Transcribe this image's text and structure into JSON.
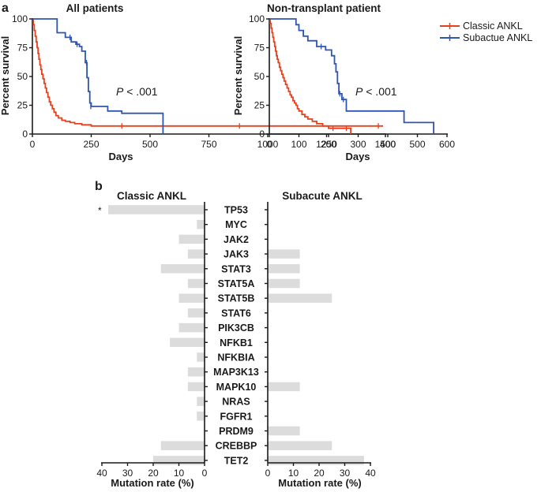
{
  "panel_labels": {
    "a": "a",
    "b": "b"
  },
  "colors": {
    "classic": "#e8401c",
    "subacute": "#2f55b0",
    "bar": "#dcdcdc",
    "axis": "#1a1a1a"
  },
  "legend": {
    "classic": "Classic ANKL",
    "subacute": "Subactue ANKL"
  },
  "chart_data": [
    {
      "id": "km-all",
      "type": "line",
      "title": "All patients",
      "xlabel": "Days",
      "ylabel": "Percent survival",
      "xlim": [
        0,
        1500
      ],
      "ylim": [
        0,
        100
      ],
      "xticks": [
        0,
        250,
        500,
        750,
        1000,
        1250,
        1500
      ],
      "yticks": [
        0,
        25,
        50,
        75,
        100
      ],
      "annotation": {
        "p_label": "P",
        "p_value": "< .001"
      },
      "series": [
        {
          "name": "Classic ANKL",
          "color_key": "classic",
          "steps": [
            [
              0,
              100
            ],
            [
              4,
              95
            ],
            [
              8,
              90
            ],
            [
              12,
              85
            ],
            [
              16,
              80
            ],
            [
              20,
              75
            ],
            [
              24,
              70
            ],
            [
              28,
              65
            ],
            [
              32,
              60
            ],
            [
              36,
              56
            ],
            [
              40,
              52
            ],
            [
              45,
              48
            ],
            [
              50,
              44
            ],
            [
              55,
              40
            ],
            [
              60,
              36
            ],
            [
              66,
              32
            ],
            [
              72,
              28
            ],
            [
              78,
              25
            ],
            [
              85,
              22
            ],
            [
              92,
              19
            ],
            [
              100,
              16
            ],
            [
              110,
              14
            ],
            [
              125,
              12
            ],
            [
              140,
              11
            ],
            [
              160,
              10
            ],
            [
              180,
              9
            ],
            [
              210,
              8
            ],
            [
              250,
              7
            ],
            [
              1490,
              7
            ]
          ],
          "censored": [
            [
              380,
              7
            ],
            [
              880,
              7
            ],
            [
              1470,
              7
            ]
          ]
        },
        {
          "name": "Subactue ANKL",
          "color_key": "subacute",
          "steps": [
            [
              0,
              100
            ],
            [
              100,
              100
            ],
            [
              105,
              88
            ],
            [
              130,
              88
            ],
            [
              140,
              84
            ],
            [
              160,
              84
            ],
            [
              165,
              80
            ],
            [
              185,
              78
            ],
            [
              200,
              76
            ],
            [
              210,
              72
            ],
            [
              225,
              62
            ],
            [
              232,
              49
            ],
            [
              238,
              37
            ],
            [
              244,
              27
            ],
            [
              250,
              24
            ],
            [
              290,
              24
            ],
            [
              320,
              20
            ],
            [
              370,
              20
            ],
            [
              380,
              18
            ],
            [
              550,
              18
            ],
            [
              555,
              0
            ]
          ],
          "censored": [
            [
              160,
              84
            ],
            [
              190,
              78
            ],
            [
              230,
              62
            ],
            [
              248,
              24
            ]
          ]
        }
      ]
    },
    {
      "id": "km-nontransplant",
      "type": "line",
      "title": "Non-transplant patient",
      "xlabel": "Days",
      "ylabel": "Percent survival",
      "xlim": [
        0,
        600
      ],
      "ylim": [
        0,
        100
      ],
      "xticks": [
        0,
        100,
        200,
        300,
        400,
        500,
        600
      ],
      "yticks": [
        0,
        25,
        50,
        75,
        100
      ],
      "annotation": {
        "p_label": "P",
        "p_value": "< .001"
      },
      "series": [
        {
          "name": "Classic ANKL",
          "color_key": "classic",
          "steps": [
            [
              0,
              100
            ],
            [
              3,
              96
            ],
            [
              6,
              92
            ],
            [
              9,
              88
            ],
            [
              12,
              84
            ],
            [
              15,
              80
            ],
            [
              18,
              76
            ],
            [
              21,
              72
            ],
            [
              24,
              68
            ],
            [
              27,
              65
            ],
            [
              30,
              62
            ],
            [
              34,
              58
            ],
            [
              38,
              55
            ],
            [
              42,
              52
            ],
            [
              46,
              49
            ],
            [
              50,
              46
            ],
            [
              55,
              43
            ],
            [
              60,
              40
            ],
            [
              65,
              37
            ],
            [
              70,
              34
            ],
            [
              75,
              32
            ],
            [
              80,
              29
            ],
            [
              85,
              27
            ],
            [
              90,
              25
            ],
            [
              95,
              22
            ],
            [
              100,
              20
            ],
            [
              110,
              17
            ],
            [
              120,
              15
            ],
            [
              130,
              13
            ],
            [
              145,
              11
            ],
            [
              160,
              9
            ],
            [
              180,
              7
            ],
            [
              200,
              5
            ],
            [
              230,
              5
            ],
            [
              270,
              5
            ],
            [
              275,
              0
            ]
          ],
          "censored": [
            [
              215,
              5
            ],
            [
              260,
              5
            ]
          ]
        },
        {
          "name": "Subactue ANKL",
          "color_key": "subacute",
          "steps": [
            [
              0,
              100
            ],
            [
              85,
              100
            ],
            [
              90,
              95
            ],
            [
              100,
              90
            ],
            [
              115,
              85
            ],
            [
              130,
              81
            ],
            [
              150,
              81
            ],
            [
              160,
              76
            ],
            [
              180,
              76
            ],
            [
              190,
              73
            ],
            [
              210,
              68
            ],
            [
              220,
              61
            ],
            [
              225,
              54
            ],
            [
              230,
              44
            ],
            [
              235,
              35
            ],
            [
              245,
              30
            ],
            [
              255,
              30
            ],
            [
              260,
              20
            ],
            [
              450,
              20
            ],
            [
              455,
              10
            ],
            [
              550,
              10
            ],
            [
              555,
              0
            ]
          ],
          "censored": [
            [
              175,
              76
            ],
            [
              238,
              35
            ],
            [
              250,
              30
            ]
          ]
        }
      ]
    },
    {
      "id": "mutation-bars",
      "type": "bar",
      "orientation": "horizontal",
      "titles": {
        "classic": "Classic ANKL",
        "subacute": "Subacute ANKL"
      },
      "xlabel": "Mutation rate (%)",
      "xlim": [
        0,
        40
      ],
      "xticks": [
        0,
        10,
        20,
        30,
        40
      ],
      "significance_marker": "*",
      "significant_gene": "TP53",
      "categories": [
        "TP53",
        "MYC",
        "JAK2",
        "JAK3",
        "STAT3",
        "STAT5A",
        "STAT5B",
        "STAT6",
        "PIK3CB",
        "NFKB1",
        "NFKBIA",
        "MAP3K13",
        "MAPK10",
        "NRAS",
        "FGFR1",
        "PRDM9",
        "CREBBP",
        "TET2"
      ],
      "series": [
        {
          "name": "Classic ANKL",
          "values": [
            37.5,
            3,
            10,
            6.5,
            17,
            6.5,
            10,
            6.5,
            10,
            13.5,
            3,
            6.5,
            6.5,
            3,
            3,
            0,
            17,
            20
          ]
        },
        {
          "name": "Subacute ANKL",
          "values": [
            0,
            0,
            0,
            12.5,
            12.5,
            12.5,
            25,
            0,
            0,
            0,
            0,
            0,
            12.5,
            0,
            0,
            12.5,
            25,
            37.5
          ]
        }
      ]
    }
  ]
}
